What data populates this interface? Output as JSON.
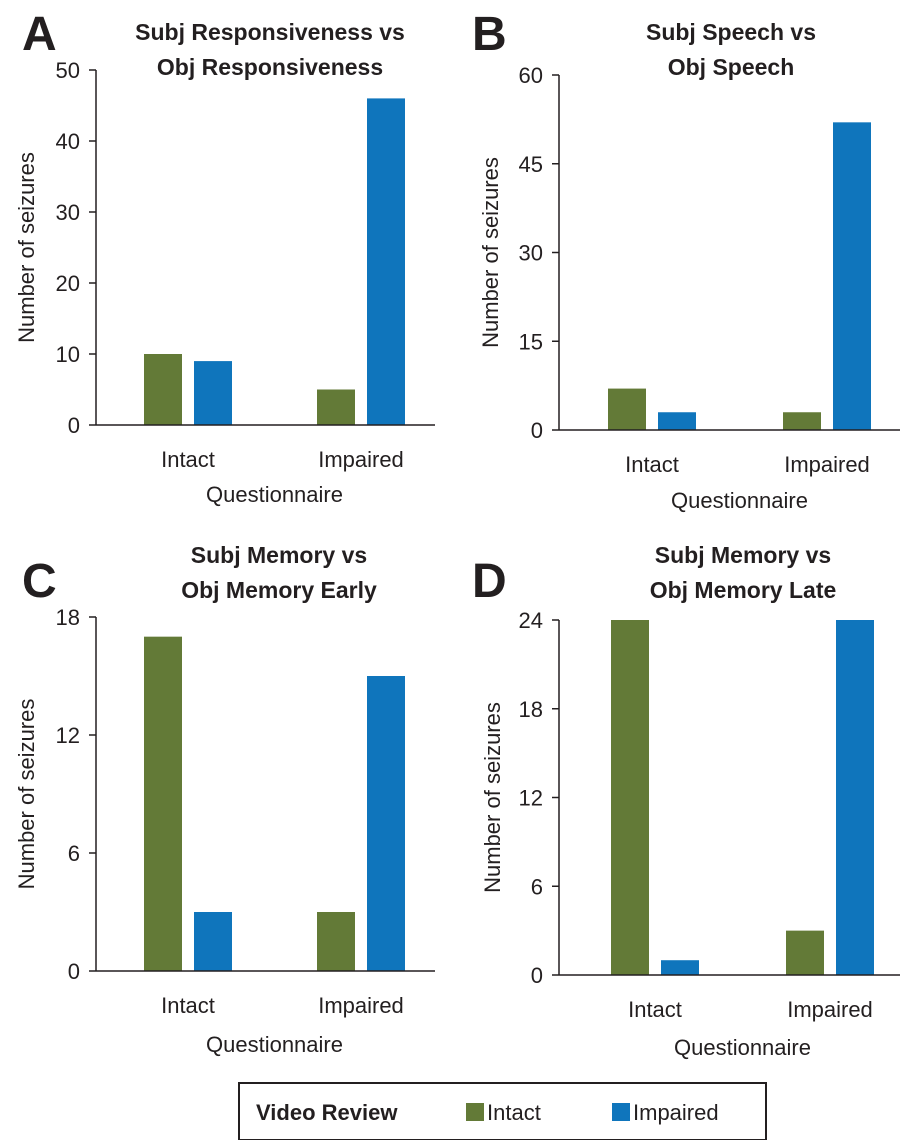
{
  "colors": {
    "intact": "#637a37",
    "impaired": "#0f75bc",
    "text": "#231f20"
  },
  "legend": {
    "title": "Video Review",
    "items": [
      {
        "label": "Intact",
        "color": "#637a37"
      },
      {
        "label": "Impaired",
        "color": "#0f75bc"
      }
    ]
  },
  "chart_data": [
    {
      "panel": "A",
      "type": "bar",
      "title_lines": [
        "Subj Responsiveness vs",
        "Obj Responsiveness"
      ],
      "xlabel": "Questionnaire",
      "ylabel": "Number of seizures",
      "categories": [
        "Intact",
        "Impaired"
      ],
      "series": [
        {
          "name": "Intact",
          "values": [
            10,
            5
          ]
        },
        {
          "name": "Impaired",
          "values": [
            9,
            46
          ]
        }
      ],
      "ylim": [
        0,
        50
      ],
      "yticks": [
        0,
        10,
        20,
        30,
        40,
        50
      ]
    },
    {
      "panel": "B",
      "type": "bar",
      "title_lines": [
        "Subj Speech vs",
        "Obj Speech"
      ],
      "xlabel": "Questionnaire",
      "ylabel": "Number of seizures",
      "categories": [
        "Intact",
        "Impaired"
      ],
      "series": [
        {
          "name": "Intact",
          "values": [
            7,
            3
          ]
        },
        {
          "name": "Impaired",
          "values": [
            3,
            52
          ]
        }
      ],
      "ylim": [
        0,
        60
      ],
      "yticks": [
        0,
        15,
        30,
        45,
        60
      ]
    },
    {
      "panel": "C",
      "type": "bar",
      "title_lines": [
        "Subj Memory vs",
        "Obj Memory Early"
      ],
      "xlabel": "Questionnaire",
      "ylabel": "Number of seizures",
      "categories": [
        "Intact",
        "Impaired"
      ],
      "series": [
        {
          "name": "Intact",
          "values": [
            17,
            3
          ]
        },
        {
          "name": "Impaired",
          "values": [
            3,
            15
          ]
        }
      ],
      "ylim": [
        0,
        18
      ],
      "yticks": [
        0,
        6,
        12,
        18
      ]
    },
    {
      "panel": "D",
      "type": "bar",
      "title_lines": [
        "Subj Memory vs",
        "Obj Memory Late"
      ],
      "xlabel": "Questionnaire",
      "ylabel": "Number of seizures",
      "categories": [
        "Intact",
        "Impaired"
      ],
      "series": [
        {
          "name": "Intact",
          "values": [
            24,
            3
          ]
        },
        {
          "name": "Impaired",
          "values": [
            1,
            24
          ]
        }
      ],
      "ylim": [
        0,
        24
      ],
      "yticks": [
        0,
        6,
        12,
        18,
        24
      ]
    }
  ]
}
